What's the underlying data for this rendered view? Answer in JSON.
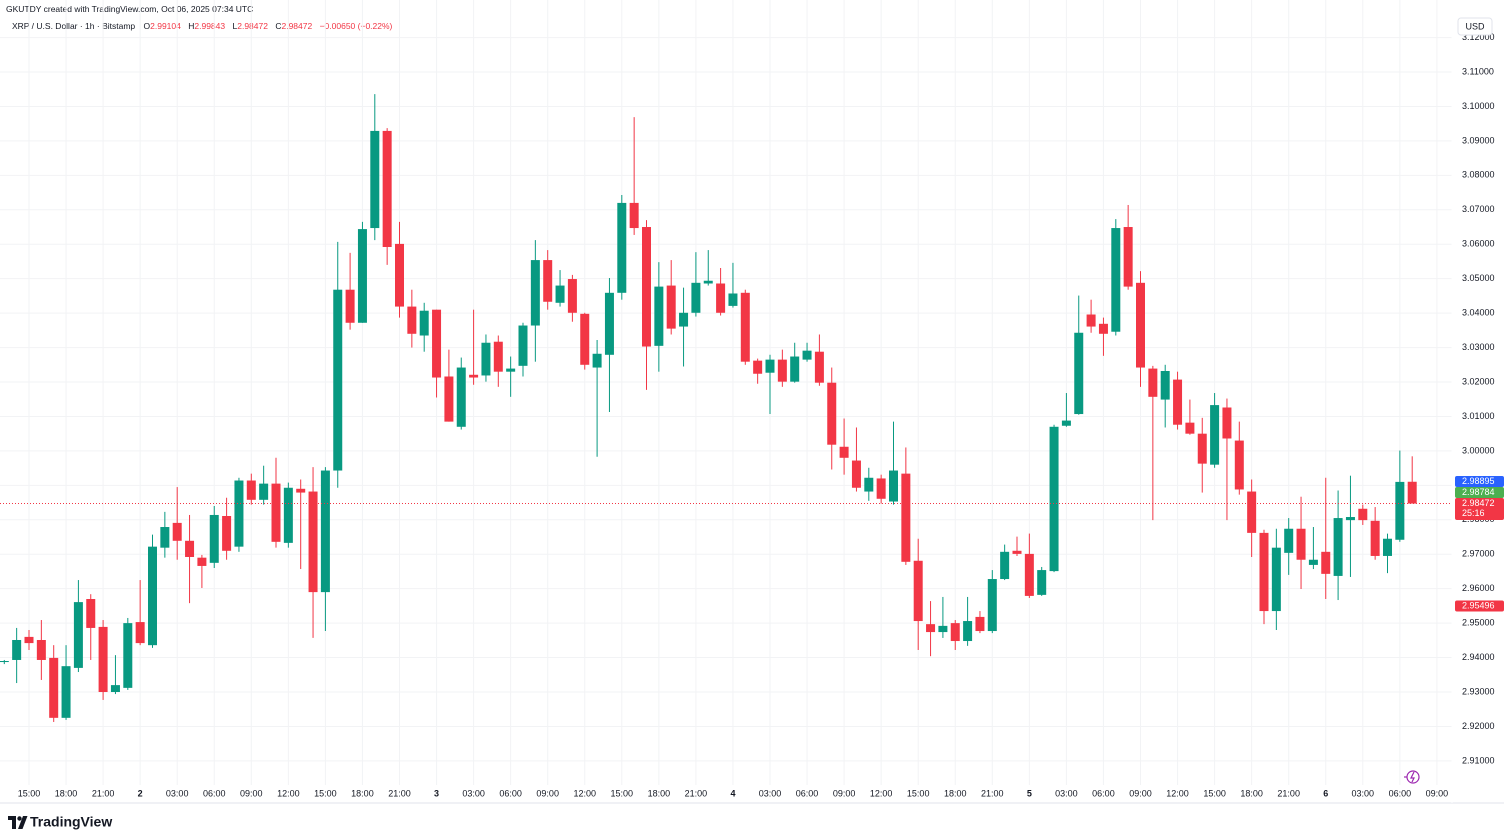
{
  "header": {
    "credit": "GKUTDY created with TradingView.com, Oct 06, 2025 07:34 UTC",
    "symbol": "XRP / U.S. Dollar · 1h · Bitstamp",
    "ohlc_labels": [
      "O",
      "H",
      "L",
      "C"
    ],
    "change": "−0.00650 (−0.22%)",
    "currency": "USD",
    "countdown": "25:16",
    "brand": "TradingView"
  },
  "chart_data": {
    "type": "candlestick",
    "categories": [
      null,
      null,
      "15:00",
      null,
      null,
      "18:00",
      null,
      null,
      "21:00",
      null,
      null,
      "2",
      null,
      null,
      "03:00",
      null,
      null,
      "06:00",
      null,
      null,
      "09:00",
      null,
      null,
      "12:00",
      null,
      null,
      "15:00",
      null,
      null,
      "18:00",
      null,
      null,
      "21:00",
      null,
      null,
      "3",
      null,
      null,
      "03:00",
      null,
      null,
      "06:00",
      null,
      null,
      "09:00",
      null,
      null,
      "12:00",
      null,
      null,
      "15:00",
      null,
      null,
      "18:00",
      null,
      null,
      "21:00",
      null,
      null,
      "4",
      null,
      null,
      "03:00",
      null,
      null,
      "06:00",
      null,
      null,
      "09:00",
      null,
      null,
      "12:00",
      null,
      null,
      "15:00",
      null,
      null,
      "18:00",
      null,
      null,
      "21:00",
      null,
      null,
      "5",
      null,
      null,
      "03:00",
      null,
      null,
      "06:00",
      null,
      null,
      "09:00",
      null,
      null,
      "12:00",
      null,
      null,
      "15:00",
      null,
      null,
      "18:00",
      null,
      null,
      "21:00",
      null,
      null,
      "6",
      null,
      null,
      "03:00",
      null,
      null,
      "06:00",
      null,
      null,
      "09:00"
    ],
    "open": [
      2.9387,
      2.9393,
      2.946,
      2.9451,
      2.9399,
      2.9225,
      2.937,
      2.957,
      2.9489,
      2.93,
      2.9312,
      2.9503,
      2.9436,
      2.9719,
      2.9791,
      2.9739,
      2.969,
      2.9675,
      2.9811,
      2.9722,
      2.9914,
      2.9858,
      2.9905,
      2.9733,
      2.989,
      2.9882,
      2.959,
      2.9943,
      3.0468,
      3.0372,
      3.0647,
      3.0929,
      3.0601,
      3.0419,
      3.0335,
      3.041,
      3.0216,
      3.007,
      3.0221,
      3.0219,
      3.0317,
      3.023,
      3.0247,
      3.0364,
      3.0554,
      3.043,
      3.0499,
      3.0398,
      3.0242,
      3.0279,
      3.0459,
      3.072,
      3.065,
      3.0305,
      3.048,
      3.0361,
      3.0401,
      3.0486,
      3.0486,
      3.0421,
      3.0459,
      3.0262,
      3.0227,
      3.0265,
      3.0201,
      3.0265,
      3.0288,
      3.0198,
      3.0012,
      2.9972,
      2.9882,
      2.992,
      2.9853,
      2.9934,
      2.9681,
      2.9497,
      2.9474,
      2.95,
      2.9448,
      2.9518,
      2.9477,
      2.9628,
      2.971,
      2.9701,
      2.9582,
      2.9651,
      3.0073,
      3.0107,
      3.0396,
      3.0369,
      3.0346,
      3.065,
      3.0488,
      3.0239,
      3.0149,
      3.0207,
      3.0082,
      3.005,
      2.996,
      3.0126,
      3.003,
      2.9882,
      2.9762,
      2.9535,
      2.9704,
      2.9774,
      2.9669,
      2.9707,
      2.9637,
      2.9799,
      2.9832,
      2.9797,
      2.9695,
      2.9742,
      2.99104,
      null,
      null
    ],
    "high": [
      2.9393,
      2.9486,
      2.948,
      2.9509,
      2.9436,
      2.9436,
      2.9625,
      2.9584,
      2.9509,
      2.9407,
      2.9515,
      2.9625,
      2.9757,
      2.9823,
      2.9895,
      2.9814,
      2.9698,
      2.984,
      2.9864,
      2.9922,
      2.9934,
      2.9957,
      2.998,
      2.9908,
      2.9917,
      2.9953,
      2.9953,
      3.0607,
      3.0575,
      3.0665,
      3.1036,
      3.0937,
      3.0665,
      3.0468,
      3.043,
      3.041,
      3.0294,
      3.0271,
      3.041,
      3.0338,
      3.0335,
      3.0274,
      3.0372,
      3.0612,
      3.0583,
      3.0525,
      3.0511,
      3.0401,
      3.0322,
      3.0502,
      3.0743,
      3.0969,
      3.067,
      3.0548,
      3.0554,
      3.0474,
      3.0577,
      3.0583,
      3.0531,
      3.0546,
      3.0468,
      3.0268,
      3.0279,
      3.0294,
      3.0314,
      3.0314,
      3.0338,
      3.0242,
      3.0094,
      3.0068,
      2.9951,
      2.9931,
      3.0085,
      3.001,
      2.9745,
      2.9564,
      2.9576,
      2.9509,
      2.9576,
      2.9535,
      2.9654,
      2.9728,
      2.9751,
      2.976,
      2.9663,
      3.0076,
      3.0168,
      3.0451,
      3.0439,
      3.0387,
      3.0673,
      3.0714,
      3.0522,
      3.0247,
      3.025,
      3.023,
      3.0149,
      3.0096,
      3.0168,
      3.0152,
      3.0085,
      2.9917,
      2.9771,
      2.9774,
      2.9805,
      2.9867,
      2.9779,
      2.9922,
      2.9885,
      2.9928,
      2.9844,
      2.9837,
      2.976,
      3.0001,
      2.99843,
      null,
      null
    ],
    "low": [
      2.9381,
      2.9326,
      2.9422,
      2.9335,
      2.9213,
      2.9219,
      2.9358,
      2.9393,
      2.9277,
      2.9294,
      2.9306,
      2.9436,
      2.9428,
      2.969,
      2.9684,
      2.9558,
      2.9602,
      2.966,
      2.9684,
      2.9707,
      2.9844,
      2.9844,
      2.9719,
      2.9719,
      2.9657,
      2.9457,
      2.9477,
      2.9893,
      3.0352,
      3.0372,
      3.0612,
      3.054,
      3.0387,
      3.03,
      3.0288,
      3.0155,
      3.0085,
      3.0062,
      3.0192,
      3.0201,
      3.0186,
      3.0157,
      3.0216,
      3.0259,
      3.041,
      3.0419,
      3.0375,
      3.0236,
      2.9983,
      3.0113,
      3.0439,
      3.0627,
      3.0177,
      3.023,
      3.0338,
      3.0245,
      3.039,
      3.048,
      3.0393,
      3.0416,
      3.025,
      3.0195,
      3.0107,
      3.0186,
      3.0198,
      3.0259,
      3.0189,
      2.9946,
      2.9931,
      2.9882,
      2.9855,
      2.9847,
      2.9844,
      2.9669,
      2.9422,
      2.9404,
      2.9457,
      2.9422,
      2.9434,
      2.9471,
      2.9471,
      2.9625,
      2.9695,
      2.9573,
      2.9579,
      2.9648,
      3.007,
      3.0105,
      3.0343,
      3.0276,
      3.0335,
      3.0468,
      3.0186,
      2.9799,
      3.0068,
      3.0062,
      3.0047,
      2.9879,
      2.9951,
      2.9799,
      2.9873,
      2.9692,
      2.9497,
      2.948,
      2.964,
      2.9599,
      2.9657,
      2.957,
      2.9567,
      2.9634,
      2.9785,
      2.9684,
      2.9645,
      2.9736,
      2.98472,
      null,
      null
    ],
    "close": [
      2.939,
      2.9451,
      2.9442,
      2.9393,
      2.9225,
      2.9375,
      2.9561,
      2.9486,
      2.93,
      2.932,
      2.95,
      2.9442,
      2.9722,
      2.9779,
      2.9739,
      2.9692,
      2.9666,
      2.9814,
      2.971,
      2.9914,
      2.9858,
      2.9905,
      2.9736,
      2.9893,
      2.9879,
      2.959,
      2.9943,
      3.0468,
      3.0372,
      3.0644,
      3.0929,
      3.0592,
      3.0419,
      3.034,
      3.0407,
      3.0213,
      3.0085,
      3.0242,
      3.0213,
      3.0314,
      3.023,
      3.0239,
      3.0364,
      3.0554,
      3.0433,
      3.048,
      3.0401,
      3.025,
      3.0282,
      3.0459,
      3.072,
      3.0647,
      3.0303,
      3.0477,
      3.0355,
      3.0401,
      3.0488,
      3.0494,
      3.0401,
      3.0457,
      3.0259,
      3.0224,
      3.0265,
      3.0201,
      3.0274,
      3.0291,
      3.0198,
      3.0018,
      2.998,
      2.9893,
      2.9922,
      2.9861,
      2.9943,
      2.9678,
      2.9506,
      2.9474,
      2.9492,
      2.9448,
      2.9506,
      2.9477,
      2.9628,
      2.9707,
      2.9701,
      2.9579,
      2.9654,
      3.007,
      3.0088,
      3.0343,
      3.0361,
      3.034,
      3.0647,
      3.0477,
      3.0242,
      3.0157,
      3.0232,
      3.0076,
      3.005,
      2.9963,
      3.0133,
      3.0036,
      2.9888,
      2.9762,
      2.9535,
      2.9719,
      2.9774,
      2.9684,
      2.9684,
      2.9643,
      2.9805,
      2.9808,
      2.9799,
      2.9695,
      2.9745,
      2.991,
      2.98472,
      null,
      null
    ],
    "up_color": "#089981",
    "down_color": "#f23645",
    "ylim": [
      2.903,
      3.1222
    ],
    "yticks": [
      {
        "value": 2.91,
        "label": "2.91000"
      },
      {
        "value": 2.92,
        "label": "2.92000"
      },
      {
        "value": 2.93,
        "label": "2.93000"
      },
      {
        "value": 2.94,
        "label": "2.94000"
      },
      {
        "value": 2.95,
        "label": "2.95000"
      },
      {
        "value": 2.96,
        "label": "2.96000"
      },
      {
        "value": 2.97,
        "label": "2.97000"
      },
      {
        "value": 2.98,
        "label": "2.98000"
      },
      {
        "value": 2.99,
        "label": "2.99000"
      },
      {
        "value": 3.0,
        "label": "3.00000"
      },
      {
        "value": 3.01,
        "label": "3.01000"
      },
      {
        "value": 3.02,
        "label": "3.02000"
      },
      {
        "value": 3.03,
        "label": "3.03000"
      },
      {
        "value": 3.04,
        "label": "3.04000"
      },
      {
        "value": 3.05,
        "label": "3.05000"
      },
      {
        "value": 3.06,
        "label": "3.06000"
      },
      {
        "value": 3.07,
        "label": "3.07000"
      },
      {
        "value": 3.08,
        "label": "3.08000"
      },
      {
        "value": 3.09,
        "label": "3.09000"
      },
      {
        "value": 3.1,
        "label": "3.10000"
      },
      {
        "value": 3.11,
        "label": "3.11000"
      },
      {
        "value": 3.12,
        "label": "3.12000"
      }
    ],
    "grid": true,
    "price_markers": [
      {
        "value": 2.98895,
        "color": "#2962ff"
      },
      {
        "value": 2.98784,
        "color": "#4caf50"
      },
      {
        "value": 2.95496,
        "color": "#f23645"
      }
    ]
  }
}
